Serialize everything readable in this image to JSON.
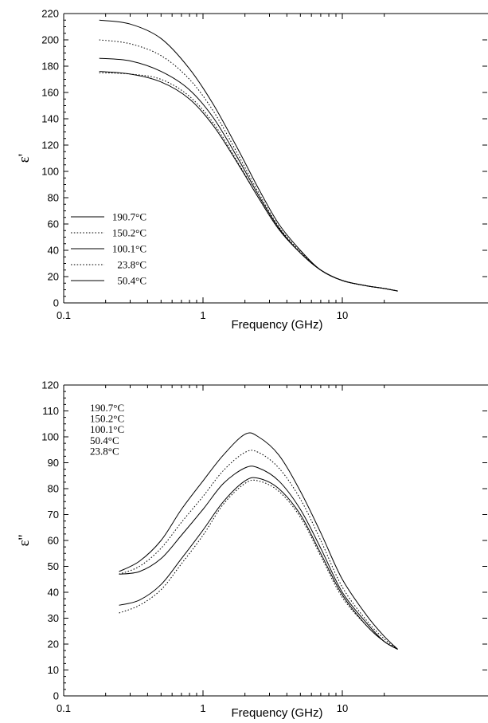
{
  "chart_data": [
    {
      "type": "line",
      "xlabel": "Frequency (GHz)",
      "ylabel": "ε'",
      "x_scale": "log",
      "xlim": [
        0.1,
        25
      ],
      "ylim": [
        0,
        220
      ],
      "x_ticks": [
        0.1,
        1,
        10
      ],
      "x_tick_labels": [
        "0.1",
        "1",
        "10"
      ],
      "y_ticks": [
        0,
        20,
        40,
        60,
        80,
        100,
        120,
        140,
        160,
        180,
        200,
        220
      ],
      "legend_placement": "bottom-left",
      "series": [
        {
          "name": "190.7°C",
          "style": "solid",
          "x": [
            0.18,
            0.3,
            0.5,
            0.8,
            1.2,
            1.8,
            2.5,
            3.5,
            5,
            7,
            10,
            15,
            20,
            25
          ],
          "y": [
            215,
            212,
            201,
            178,
            150,
            116,
            87,
            60,
            40,
            25,
            17,
            13,
            11,
            9
          ]
        },
        {
          "name": "150.2°C",
          "style": "dotted",
          "x": [
            0.18,
            0.3,
            0.5,
            0.8,
            1.2,
            1.8,
            2.5,
            3.5,
            5,
            7,
            10,
            15,
            20,
            25
          ],
          "y": [
            200,
            197,
            188,
            170,
            145,
            112,
            84,
            58,
            39,
            25,
            17,
            13,
            11,
            9
          ]
        },
        {
          "name": "100.1°C",
          "style": "solid",
          "x": [
            0.18,
            0.3,
            0.5,
            0.8,
            1.2,
            1.8,
            2.5,
            3.5,
            5,
            7,
            10,
            15,
            20,
            25
          ],
          "y": [
            186,
            184,
            176,
            162,
            140,
            109,
            82,
            57,
            38,
            25,
            17,
            13,
            11,
            9
          ]
        },
        {
          "name": "23.8°C",
          "style": "dotted",
          "x": [
            0.18,
            0.3,
            0.5,
            0.8,
            1.2,
            1.8,
            2.5,
            3.5,
            5,
            7,
            10,
            15,
            20,
            25
          ],
          "y": [
            175,
            174,
            170,
            157,
            136,
            106,
            80,
            56,
            38,
            25,
            17,
            13,
            11,
            9
          ]
        },
        {
          "name": "50.4°C",
          "style": "solid",
          "x": [
            0.18,
            0.3,
            0.5,
            0.8,
            1.2,
            1.8,
            2.5,
            3.5,
            5,
            7,
            10,
            15,
            20,
            25
          ],
          "y": [
            176,
            174,
            168,
            155,
            134,
            105,
            80,
            56,
            38,
            25,
            17,
            13,
            11,
            9
          ]
        }
      ]
    },
    {
      "type": "line",
      "xlabel": "Frequency (GHz)",
      "ylabel": "ε''",
      "x_scale": "log",
      "xlim": [
        0.1,
        25
      ],
      "ylim": [
        0,
        120
      ],
      "x_ticks": [
        0.1,
        1,
        10
      ],
      "x_tick_labels": [
        "0.1",
        "1",
        "10"
      ],
      "y_ticks": [
        0,
        10,
        20,
        30,
        40,
        50,
        60,
        70,
        80,
        90,
        100,
        110,
        120
      ],
      "legend_placement": "top-left",
      "series": [
        {
          "name": "190.7°C",
          "style": "solid",
          "x": [
            0.25,
            0.35,
            0.5,
            0.7,
            1,
            1.4,
            2,
            2.5,
            3.5,
            5,
            7,
            10,
            15,
            20,
            25
          ],
          "y": [
            48,
            52,
            60,
            72,
            83,
            93,
            101,
            100,
            93,
            79,
            63,
            45,
            31,
            23,
            18
          ]
        },
        {
          "name": "150.2°C",
          "style": "dotted",
          "x": [
            0.25,
            0.35,
            0.5,
            0.7,
            1,
            1.4,
            2,
            2.5,
            3.5,
            5,
            7,
            10,
            15,
            20,
            25
          ],
          "y": [
            47,
            50,
            57,
            67,
            77,
            87,
            94,
            94,
            88,
            76,
            60,
            42,
            29,
            22,
            18
          ]
        },
        {
          "name": "100.1°C",
          "style": "solid",
          "x": [
            0.25,
            0.35,
            0.5,
            0.7,
            1,
            1.4,
            2,
            2.5,
            3.5,
            5,
            7,
            10,
            15,
            20,
            25
          ],
          "y": [
            47,
            48,
            53,
            62,
            72,
            82,
            88,
            88,
            83,
            72,
            57,
            40,
            28,
            21,
            18
          ]
        },
        {
          "name": "50.4°C",
          "style": "solid",
          "x": [
            0.25,
            0.35,
            0.5,
            0.7,
            1,
            1.4,
            2,
            2.5,
            3.5,
            5,
            7,
            10,
            15,
            20,
            25
          ],
          "y": [
            35,
            37,
            43,
            53,
            64,
            75,
            83,
            84,
            80,
            70,
            55,
            39,
            27,
            21,
            18
          ]
        },
        {
          "name": "23.8°C",
          "style": "dotted",
          "x": [
            0.25,
            0.35,
            0.5,
            0.7,
            1,
            1.4,
            2,
            2.5,
            3.5,
            5,
            7,
            10,
            15,
            20,
            25
          ],
          "y": [
            32,
            35,
            41,
            51,
            62,
            74,
            82,
            83,
            79,
            69,
            54,
            38,
            27,
            21,
            18
          ]
        }
      ]
    }
  ]
}
